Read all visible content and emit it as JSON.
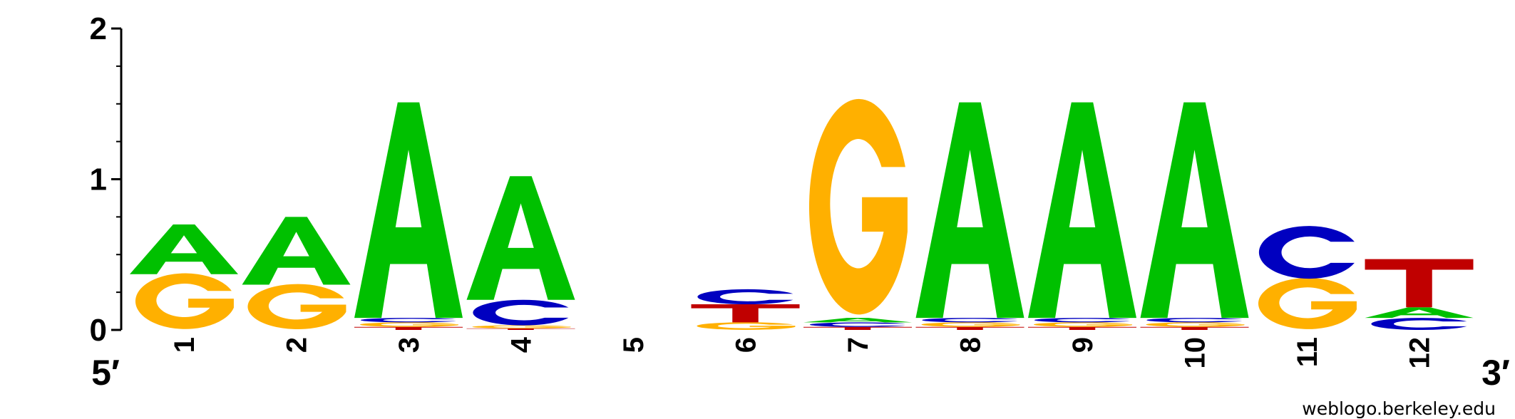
{
  "chart_data": {
    "type": "sequence-logo",
    "alphabet_colors": {
      "A": "#00c000",
      "C": "#0000c0",
      "G": "#ffb000",
      "T": "#c00000"
    },
    "ylim": [
      0,
      2
    ],
    "y_ticks": [
      {
        "value": 0,
        "label": "0"
      },
      {
        "value": 1,
        "label": "1"
      },
      {
        "value": 2,
        "label": "2"
      }
    ],
    "end_labels": {
      "left": "5′",
      "right": "3′"
    },
    "credit": "weblogo.berkeley.edu",
    "positions": [
      {
        "label": "1",
        "stack": [
          {
            "letter": "G",
            "height": 0.37
          },
          {
            "letter": "A",
            "height": 0.33
          }
        ]
      },
      {
        "label": "2",
        "stack": [
          {
            "letter": "G",
            "height": 0.3
          },
          {
            "letter": "A",
            "height": 0.45
          }
        ]
      },
      {
        "label": "3",
        "stack": [
          {
            "letter": "T",
            "height": 0.02
          },
          {
            "letter": "G",
            "height": 0.03
          },
          {
            "letter": "C",
            "height": 0.03
          },
          {
            "letter": "A",
            "height": 1.43
          }
        ]
      },
      {
        "label": "4",
        "stack": [
          {
            "letter": "T",
            "height": 0.01
          },
          {
            "letter": "G",
            "height": 0.02
          },
          {
            "letter": "C",
            "height": 0.17
          },
          {
            "letter": "A",
            "height": 0.82
          }
        ]
      },
      {
        "label": "5",
        "stack": []
      },
      {
        "label": "6",
        "stack": [
          {
            "letter": "G",
            "height": 0.05
          },
          {
            "letter": "T",
            "height": 0.12
          },
          {
            "letter": "C",
            "height": 0.1
          }
        ]
      },
      {
        "label": "7",
        "stack": [
          {
            "letter": "T",
            "height": 0.02
          },
          {
            "letter": "C",
            "height": 0.03
          },
          {
            "letter": "A",
            "height": 0.03
          },
          {
            "letter": "G",
            "height": 1.43
          }
        ]
      },
      {
        "label": "8",
        "stack": [
          {
            "letter": "T",
            "height": 0.02
          },
          {
            "letter": "G",
            "height": 0.03
          },
          {
            "letter": "C",
            "height": 0.03
          },
          {
            "letter": "A",
            "height": 1.43
          }
        ]
      },
      {
        "label": "9",
        "stack": [
          {
            "letter": "T",
            "height": 0.02
          },
          {
            "letter": "G",
            "height": 0.03
          },
          {
            "letter": "C",
            "height": 0.03
          },
          {
            "letter": "A",
            "height": 1.43
          }
        ]
      },
      {
        "label": "10",
        "stack": [
          {
            "letter": "T",
            "height": 0.02
          },
          {
            "letter": "G",
            "height": 0.03
          },
          {
            "letter": "C",
            "height": 0.03
          },
          {
            "letter": "A",
            "height": 1.43
          }
        ]
      },
      {
        "label": "11",
        "stack": [
          {
            "letter": "G",
            "height": 0.34
          },
          {
            "letter": "C",
            "height": 0.35
          }
        ]
      },
      {
        "label": "12",
        "stack": [
          {
            "letter": "C",
            "height": 0.08
          },
          {
            "letter": "A",
            "height": 0.07
          },
          {
            "letter": "T",
            "height": 0.32
          }
        ]
      }
    ]
  }
}
